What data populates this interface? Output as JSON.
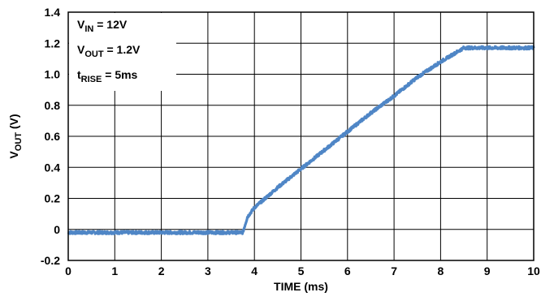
{
  "chart_data": {
    "type": "line",
    "xlabel": "TIME (ms)",
    "ylabel_main": "V",
    "ylabel_sub": "OUT",
    "ylabel_unit": " (V)",
    "xlim": [
      0,
      10
    ],
    "ylim": [
      -0.2,
      1.4
    ],
    "xticks": [
      "0",
      "1",
      "2",
      "3",
      "4",
      "5",
      "6",
      "7",
      "8",
      "9",
      "10"
    ],
    "xtick_values": [
      0,
      1,
      2,
      3,
      4,
      5,
      6,
      7,
      8,
      9,
      10
    ],
    "yticks": [
      "-0.2",
      "0",
      "0.2",
      "0.4",
      "0.6",
      "0.8",
      "1.0",
      "1.2",
      "1.4"
    ],
    "ytick_values": [
      -0.2,
      0,
      0.2,
      0.4,
      0.6,
      0.8,
      1.0,
      1.2,
      1.4
    ],
    "grid": true,
    "line_color": "#4f86c6",
    "annotations": [
      {
        "main": "V",
        "sub": "IN",
        "rest": " = 12V"
      },
      {
        "main": "V",
        "sub": "OUT",
        "rest": " = 1.2V"
      },
      {
        "main": "t",
        "sub": "RISE",
        "rest": " = 5ms"
      }
    ],
    "series": [
      {
        "x": [
          0,
          3.75,
          3.8,
          3.85,
          4.0,
          4.5,
          5.0,
          5.5,
          6.0,
          6.5,
          7.0,
          7.5,
          8.0,
          8.5,
          8.6,
          9.0,
          9.5,
          10.0
        ],
        "y": [
          -0.02,
          -0.02,
          0.03,
          0.08,
          0.14,
          0.27,
          0.39,
          0.51,
          0.63,
          0.75,
          0.86,
          0.98,
          1.08,
          1.17,
          1.17,
          1.17,
          1.17,
          1.17
        ]
      }
    ]
  }
}
